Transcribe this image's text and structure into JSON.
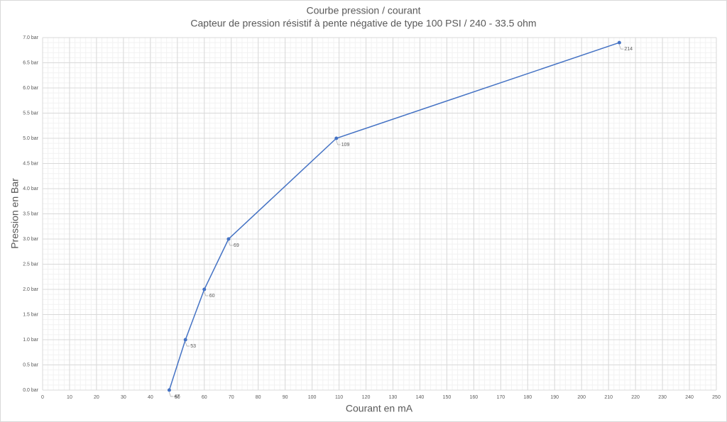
{
  "chart_data": {
    "type": "line",
    "title": "Courbe pression / courant",
    "subtitle": "Capteur de pression résistif à pente négative de type 100 PSI / 240 - 33.5 ohm",
    "x_label": "Courant en mA",
    "y_label": "Pression en Bar",
    "x": [
      47,
      53,
      60,
      69,
      109,
      214
    ],
    "series": [
      {
        "color": "#4472c4",
        "values": [
          0,
          1,
          2,
          3,
          5,
          6.9
        ]
      }
    ],
    "xlim": [
      0,
      250
    ],
    "xticks": [
      0,
      10,
      20,
      30,
      40,
      50,
      60,
      70,
      80,
      90,
      100,
      110,
      120,
      130,
      140,
      150,
      160,
      170,
      180,
      190,
      200,
      210,
      220,
      230,
      240,
      250
    ],
    "ylim": [
      0,
      7
    ],
    "yticks": [
      {
        "value": 0,
        "label": "0.0 bar"
      },
      {
        "value": 0.5,
        "label": "0.5 bar"
      },
      {
        "value": 1,
        "label": "1.0 bar"
      },
      {
        "value": 1.5,
        "label": "1.5 bar"
      },
      {
        "value": 2,
        "label": "2.0 bar"
      },
      {
        "value": 2.5,
        "label": "2.5 bar"
      },
      {
        "value": 3,
        "label": "3.0 bar"
      },
      {
        "value": 3.5,
        "label": "3.5 bar"
      },
      {
        "value": 4,
        "label": "4.0 bar"
      },
      {
        "value": 4.5,
        "label": "4.5 bar"
      },
      {
        "value": 5,
        "label": "5.0 bar"
      },
      {
        "value": 5.5,
        "label": "5.5 bar"
      },
      {
        "value": 6,
        "label": "6.0 bar"
      },
      {
        "value": 6.5,
        "label": "6.5 bar"
      },
      {
        "value": 7,
        "label": "7.0 bar"
      }
    ],
    "grid": true
  }
}
